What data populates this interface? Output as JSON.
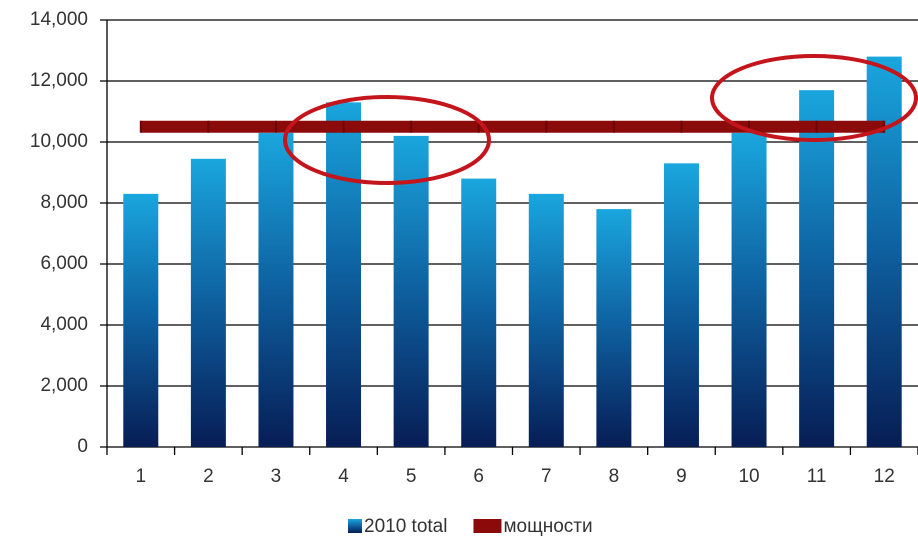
{
  "chart_data": {
    "type": "bar",
    "categories": [
      "1",
      "2",
      "3",
      "4",
      "5",
      "6",
      "7",
      "8",
      "9",
      "10",
      "11",
      "12"
    ],
    "series": [
      {
        "name": "2010 total",
        "type": "bar",
        "color": "#1aa6de",
        "values": [
          8300,
          9450,
          10300,
          11300,
          10200,
          8800,
          8300,
          7800,
          9300,
          10300,
          11700,
          12800
        ]
      },
      {
        "name": "мощности",
        "type": "line",
        "color": "#8b0a0a",
        "values": [
          10500,
          10500,
          10500,
          10500,
          10500,
          10500,
          10500,
          10500,
          10500,
          10500,
          10500,
          10500
        ]
      }
    ],
    "ylim": [
      0,
      14000
    ],
    "yticks": [
      0,
      {
        "value": 2000,
        "label": "2,000"
      },
      {
        "value": 4000,
        "label": "4,000"
      },
      {
        "value": 6000,
        "label": "6,000"
      },
      {
        "value": 8000,
        "label": "8,000"
      },
      {
        "value": 10000,
        "label": "10,000"
      },
      {
        "value": 12000,
        "label": "12,000"
      },
      {
        "value": 14000,
        "label": "14,000"
      }
    ],
    "grid": true,
    "legend": "bottom"
  }
}
